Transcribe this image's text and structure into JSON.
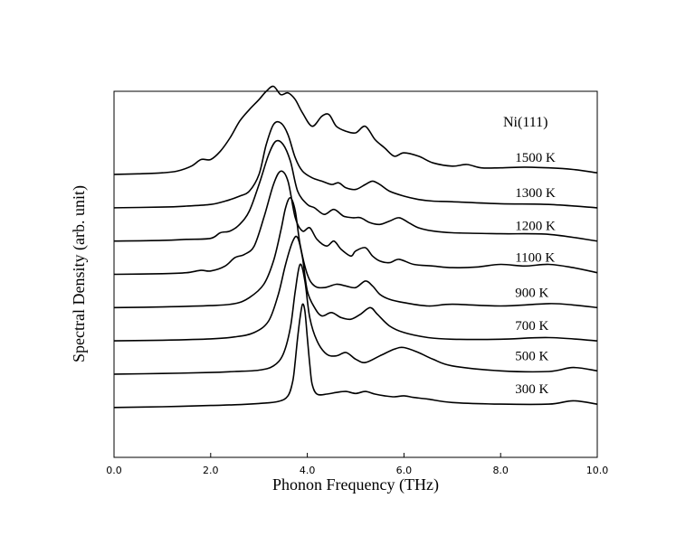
{
  "chart_data": {
    "type": "line",
    "title": "Ni(111)",
    "xlabel": "Phonon Frequency (THz)",
    "ylabel": "Spectral Density (arb. unit)",
    "xlim": [
      0,
      10
    ],
    "ylim": [
      0,
      11
    ],
    "xticks": [
      "0.0",
      "2.0",
      "4.0",
      "6.0",
      "8.0",
      "10.0"
    ],
    "grid": false,
    "legend": "none",
    "line_color": "#000000",
    "series": [
      {
        "name": "300 K",
        "x": [
          0,
          1,
          2,
          2.5,
          3,
          3.4,
          3.6,
          3.7,
          3.75,
          3.8,
          3.85,
          3.9,
          3.95,
          4.0,
          4.05,
          4.1,
          4.2,
          4.4,
          4.6,
          4.8,
          5.0,
          5.2,
          5.4,
          5.6,
          5.8,
          6.0,
          6.2,
          6.5,
          7.0,
          8.0,
          9.0,
          9.5,
          10
        ],
        "y": [
          1.5,
          1.52,
          1.56,
          1.58,
          1.62,
          1.68,
          1.85,
          2.3,
          2.9,
          3.6,
          4.2,
          4.6,
          4.4,
          3.6,
          2.8,
          2.2,
          1.9,
          1.9,
          1.95,
          1.98,
          1.92,
          1.98,
          1.9,
          1.85,
          1.82,
          1.85,
          1.8,
          1.75,
          1.65,
          1.6,
          1.6,
          1.7,
          1.6
        ]
      },
      {
        "name": "500 K",
        "x": [
          0,
          1,
          2,
          2.5,
          3,
          3.3,
          3.5,
          3.65,
          3.75,
          3.85,
          3.95,
          4.05,
          4.2,
          4.4,
          4.6,
          4.8,
          5.0,
          5.2,
          5.5,
          5.8,
          6.0,
          6.3,
          6.6,
          7.0,
          8.0,
          9.0,
          9.5,
          10
        ],
        "y": [
          2.5,
          2.52,
          2.55,
          2.58,
          2.62,
          2.75,
          3.1,
          3.9,
          5.0,
          5.8,
          5.3,
          4.2,
          3.5,
          3.1,
          3.05,
          3.15,
          2.95,
          2.85,
          3.05,
          3.25,
          3.3,
          3.15,
          2.95,
          2.75,
          2.6,
          2.58,
          2.7,
          2.6
        ]
      },
      {
        "name": "700 K",
        "x": [
          0,
          1,
          2,
          2.5,
          2.9,
          3.2,
          3.4,
          3.55,
          3.7,
          3.8,
          3.9,
          4.0,
          4.15,
          4.3,
          4.5,
          4.7,
          4.9,
          5.1,
          5.3,
          5.45,
          5.7,
          6.0,
          6.5,
          7.0,
          8.0,
          9.0,
          10
        ],
        "y": [
          3.5,
          3.52,
          3.56,
          3.62,
          3.75,
          4.1,
          4.9,
          5.8,
          6.5,
          6.6,
          6.0,
          5.0,
          4.5,
          4.25,
          4.35,
          4.2,
          4.15,
          4.3,
          4.5,
          4.3,
          3.95,
          3.75,
          3.6,
          3.55,
          3.55,
          3.6,
          3.5
        ]
      },
      {
        "name": "900 K",
        "x": [
          0,
          1,
          2,
          2.5,
          2.8,
          3.1,
          3.3,
          3.45,
          3.55,
          3.65,
          3.75,
          3.85,
          4.0,
          4.15,
          4.35,
          4.6,
          4.8,
          5.0,
          5.2,
          5.35,
          5.5,
          5.7,
          6.0,
          6.5,
          7.0,
          8.0,
          9.0,
          9.5,
          10
        ],
        "y": [
          4.5,
          4.52,
          4.56,
          4.62,
          4.8,
          5.2,
          5.9,
          6.8,
          7.5,
          7.8,
          7.4,
          6.4,
          5.5,
          5.15,
          5.1,
          5.2,
          5.15,
          5.1,
          5.3,
          5.15,
          4.9,
          4.75,
          4.65,
          4.55,
          4.6,
          4.55,
          4.62,
          4.58,
          4.5
        ]
      },
      {
        "name": "1100 K",
        "x": [
          0,
          1,
          1.5,
          1.8,
          2.0,
          2.3,
          2.5,
          2.7,
          2.9,
          3.1,
          3.3,
          3.45,
          3.6,
          3.75,
          3.9,
          4.05,
          4.2,
          4.4,
          4.55,
          4.7,
          4.9,
          5.0,
          5.2,
          5.35,
          5.5,
          5.7,
          5.9,
          6.2,
          6.6,
          7.0,
          7.5,
          8.0,
          8.5,
          9.0,
          9.5,
          10
        ],
        "y": [
          5.5,
          5.52,
          5.55,
          5.62,
          5.6,
          5.75,
          6.0,
          6.1,
          6.35,
          7.2,
          8.2,
          8.6,
          8.3,
          7.2,
          6.8,
          6.9,
          6.55,
          6.35,
          6.5,
          6.25,
          6.05,
          6.2,
          6.3,
          6.05,
          5.9,
          5.85,
          5.95,
          5.8,
          5.75,
          5.7,
          5.72,
          5.8,
          5.75,
          5.8,
          5.7,
          5.55
        ]
      },
      {
        "name": "1200 K",
        "x": [
          0,
          1,
          1.5,
          2.0,
          2.2,
          2.4,
          2.6,
          2.8,
          3.0,
          3.2,
          3.35,
          3.5,
          3.65,
          3.8,
          4.0,
          4.15,
          4.35,
          4.55,
          4.75,
          4.95,
          5.1,
          5.3,
          5.5,
          5.7,
          5.9,
          6.1,
          6.3,
          6.6,
          7.0,
          8.0,
          9.0,
          10
        ],
        "y": [
          6.5,
          6.52,
          6.55,
          6.58,
          6.75,
          6.8,
          7.0,
          7.4,
          8.2,
          9.1,
          9.5,
          9.4,
          8.9,
          8.0,
          7.6,
          7.5,
          7.3,
          7.45,
          7.25,
          7.2,
          7.2,
          7.05,
          7.0,
          7.1,
          7.2,
          7.05,
          6.9,
          6.8,
          6.75,
          6.72,
          6.7,
          6.5
        ]
      },
      {
        "name": "1300 K",
        "x": [
          0,
          1,
          1.5,
          2.0,
          2.3,
          2.6,
          2.8,
          3.0,
          3.15,
          3.3,
          3.45,
          3.6,
          3.75,
          3.9,
          4.1,
          4.3,
          4.5,
          4.65,
          4.8,
          5.0,
          5.2,
          5.35,
          5.5,
          5.7,
          6.0,
          6.3,
          6.6,
          7.0,
          8.0,
          9.0,
          10
        ],
        "y": [
          7.5,
          7.52,
          7.55,
          7.6,
          7.7,
          7.85,
          8.0,
          8.5,
          9.4,
          10.0,
          10.05,
          9.7,
          9.0,
          8.6,
          8.4,
          8.3,
          8.2,
          8.25,
          8.1,
          8.05,
          8.2,
          8.3,
          8.2,
          8.0,
          7.85,
          7.75,
          7.7,
          7.68,
          7.62,
          7.6,
          7.5
        ]
      },
      {
        "name": "1500 K",
        "x": [
          0,
          0.5,
          1.0,
          1.3,
          1.6,
          1.8,
          2.0,
          2.2,
          2.4,
          2.6,
          2.8,
          3.0,
          3.15,
          3.3,
          3.45,
          3.6,
          3.75,
          3.9,
          4.1,
          4.3,
          4.45,
          4.6,
          4.8,
          5.0,
          5.2,
          5.4,
          5.6,
          5.8,
          6.0,
          6.3,
          6.6,
          7.0,
          7.3,
          7.6,
          8.0,
          8.5,
          9.0,
          9.5,
          10
        ],
        "y": [
          8.5,
          8.52,
          8.55,
          8.6,
          8.75,
          8.95,
          8.95,
          9.2,
          9.6,
          10.1,
          10.45,
          10.75,
          11.0,
          11.15,
          10.9,
          10.95,
          10.75,
          10.35,
          9.95,
          10.25,
          10.3,
          9.95,
          9.8,
          9.75,
          9.95,
          9.55,
          9.3,
          9.05,
          9.15,
          9.05,
          8.85,
          8.75,
          8.8,
          8.7,
          8.7,
          8.72,
          8.7,
          8.65,
          8.55
        ]
      }
    ]
  }
}
